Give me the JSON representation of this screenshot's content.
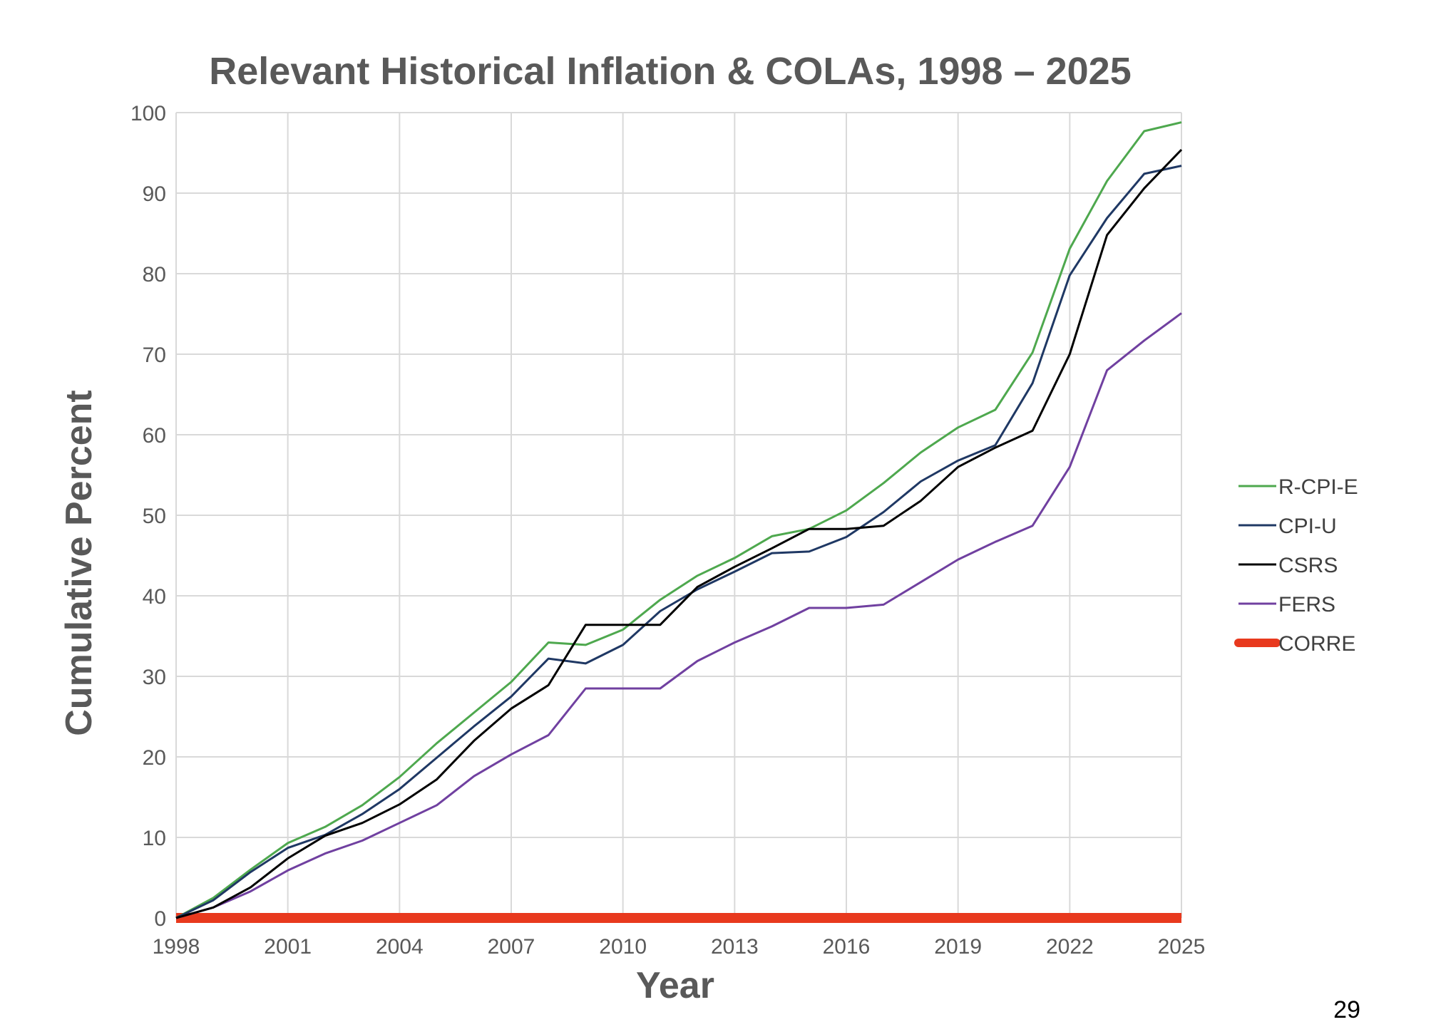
{
  "page_number": "29",
  "chart_data": {
    "type": "line",
    "title": "Relevant Historical Inflation & COLAs, 1998 – 2025",
    "xlabel": "Year",
    "ylabel": "Cumulative Percent",
    "xlim": [
      1998,
      2025
    ],
    "ylim": [
      0,
      100
    ],
    "x_ticks": [
      "1998",
      "2001",
      "2004",
      "2007",
      "2010",
      "2013",
      "2016",
      "2019",
      "2022",
      "2025"
    ],
    "y_ticks": [
      "0",
      "10",
      "20",
      "30",
      "40",
      "50",
      "60",
      "70",
      "80",
      "90",
      "100"
    ],
    "grid": true,
    "legend_position": "right",
    "x": [
      1998,
      1999,
      2000,
      2001,
      2002,
      2003,
      2004,
      2005,
      2006,
      2007,
      2008,
      2009,
      2010,
      2011,
      2012,
      2013,
      2014,
      2015,
      2016,
      2017,
      2018,
      2019,
      2020,
      2021,
      2022,
      2023,
      2024,
      2025
    ],
    "series": [
      {
        "name": "R-CPI-E",
        "color": "#4ea84e",
        "width": 3,
        "values": [
          0,
          2.5,
          6.0,
          9.3,
          11.3,
          14.0,
          17.5,
          21.7,
          25.5,
          29.3,
          34.2,
          33.9,
          35.8,
          39.5,
          42.5,
          44.7,
          47.4,
          48.3,
          50.6,
          54.0,
          57.8,
          60.9,
          63.1,
          70.2,
          83.1,
          91.5,
          97.7,
          98.8
        ]
      },
      {
        "name": "CPI-U",
        "color": "#1f3864",
        "width": 3,
        "values": [
          0,
          2.2,
          5.7,
          8.7,
          10.3,
          12.9,
          16.0,
          19.9,
          23.8,
          27.5,
          32.2,
          31.6,
          33.9,
          38.1,
          40.8,
          43.0,
          45.3,
          45.5,
          47.3,
          50.4,
          54.2,
          56.8,
          58.7,
          66.4,
          79.8,
          86.9,
          92.4,
          93.4
        ]
      },
      {
        "name": "CSRS",
        "color": "#000000",
        "width": 3,
        "values": [
          0,
          1.3,
          3.8,
          7.4,
          10.2,
          11.8,
          14.1,
          17.2,
          22.0,
          26.0,
          28.9,
          36.4,
          36.4,
          36.4,
          41.1,
          43.6,
          45.9,
          48.3,
          48.3,
          48.7,
          51.8,
          56.0,
          58.4,
          60.5,
          70.0,
          84.8,
          90.6,
          95.4
        ]
      },
      {
        "name": "FERS",
        "color": "#7040a0",
        "width": 3,
        "values": [
          0,
          1.3,
          3.3,
          5.9,
          8.0,
          9.6,
          11.8,
          14.0,
          17.6,
          20.3,
          22.7,
          28.5,
          28.5,
          28.5,
          31.9,
          34.2,
          36.2,
          38.5,
          38.5,
          38.9,
          41.7,
          44.5,
          46.7,
          48.7,
          56.0,
          68.0,
          71.7,
          75.1
        ]
      },
      {
        "name": "CORRE",
        "color": "#e8391e",
        "width": 14,
        "values": [
          0,
          0,
          0,
          0,
          0,
          0,
          0,
          0,
          0,
          0,
          0,
          0,
          0,
          0,
          0,
          0,
          0,
          0,
          0,
          0,
          0,
          0,
          0,
          0,
          0,
          0,
          0,
          0
        ]
      }
    ]
  }
}
